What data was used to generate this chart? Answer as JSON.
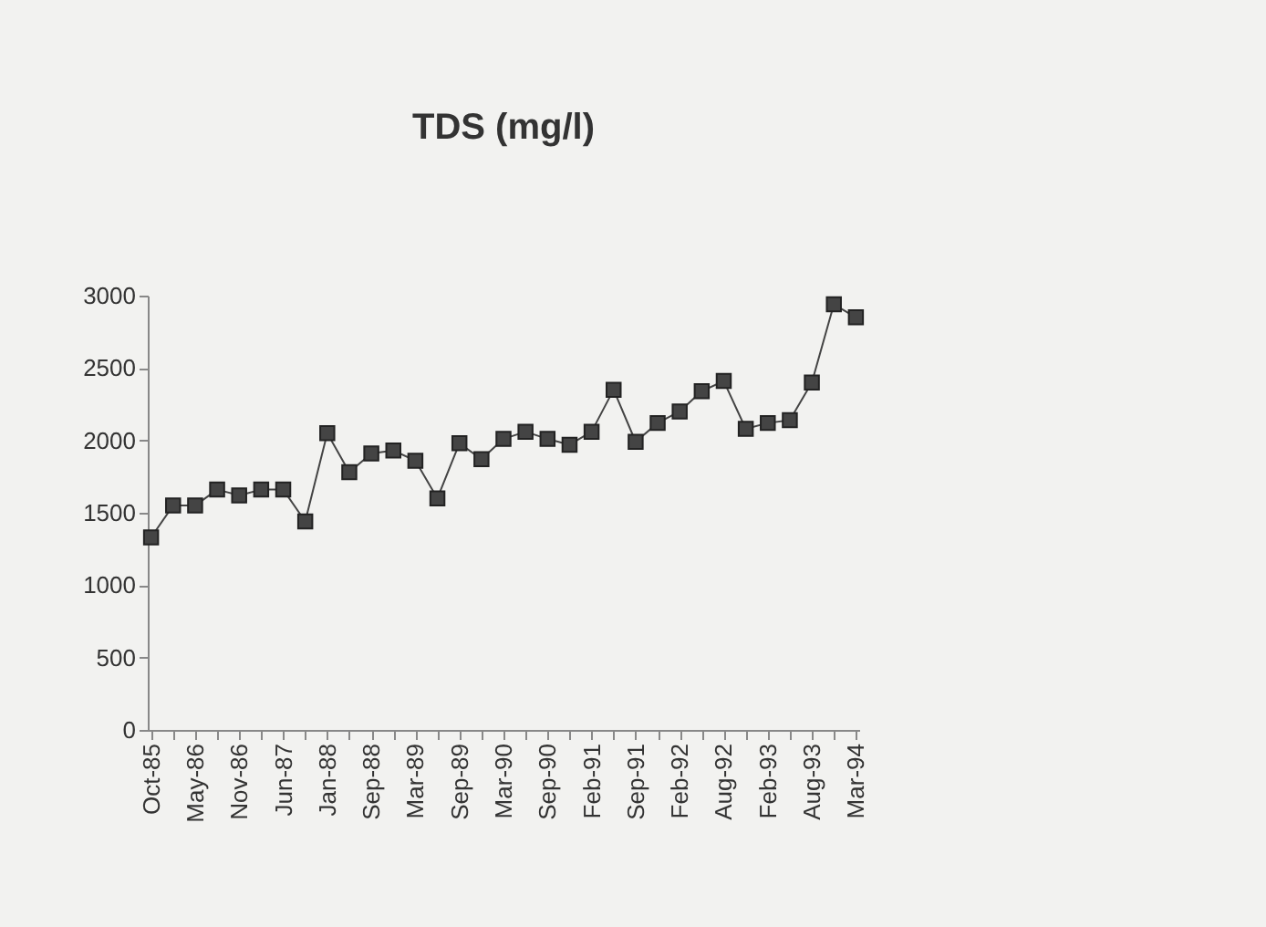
{
  "chart_data": {
    "type": "line",
    "title": "TDS (mg/l)",
    "categories": [
      "Oct-85",
      null,
      "May-86",
      null,
      "Nov-86",
      null,
      "Jun-87",
      null,
      "Jan-88",
      null,
      "Sep-88",
      null,
      "Mar-89",
      null,
      "Sep-89",
      null,
      "Mar-90",
      null,
      "Sep-90",
      null,
      "Feb-91",
      null,
      "Sep-91",
      null,
      "Feb-92",
      null,
      "Aug-92",
      null,
      "Feb-93",
      null,
      "Aug-93",
      null,
      "Mar-94"
    ],
    "series": [
      {
        "color": "#444444",
        "values": [
          1330,
          1550,
          1550,
          1660,
          1620,
          1660,
          1660,
          1440,
          2050,
          1780,
          1910,
          1930,
          1860,
          1600,
          1980,
          1870,
          2010,
          2060,
          2010,
          1970,
          2060,
          2350,
          1990,
          2120,
          2200,
          2340,
          2410,
          2080,
          2120,
          2140,
          2400,
          2940,
          2850
        ]
      }
    ],
    "ylim": [
      0,
      3000
    ],
    "yticks": [
      0,
      500,
      1000,
      1500,
      2000,
      2500,
      3000
    ],
    "marker": "square",
    "line_style": "solid"
  }
}
